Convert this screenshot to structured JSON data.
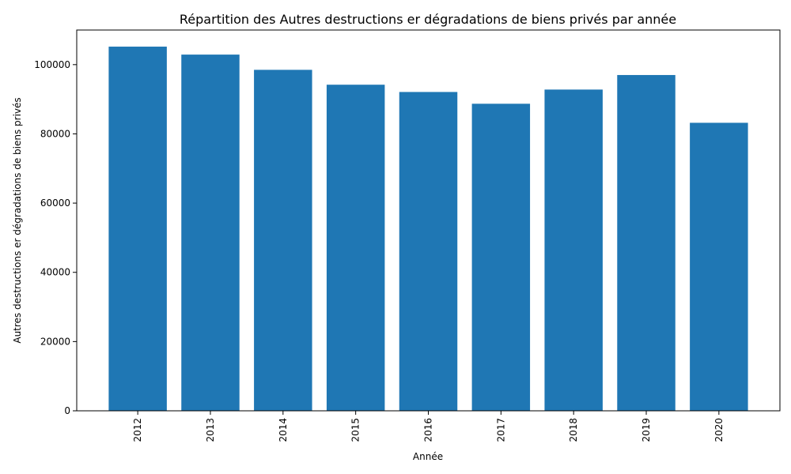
{
  "chart_data": {
    "type": "bar",
    "title": "Répartition des Autres destructions er dégradations de biens privés par année",
    "xlabel": "Année",
    "ylabel": "Autres destructions er dégradations de biens privés",
    "categories": [
      "2012",
      "2013",
      "2014",
      "2015",
      "2016",
      "2017",
      "2018",
      "2019",
      "2020"
    ],
    "values": [
      105200,
      102900,
      98500,
      94200,
      92100,
      88700,
      92800,
      97000,
      83200
    ],
    "ylim": [
      0,
      110000
    ],
    "yticks": [
      0,
      20000,
      40000,
      60000,
      80000,
      100000
    ],
    "ytick_labels": [
      "0",
      "20000",
      "40000",
      "60000",
      "80000",
      "100000"
    ],
    "bar_color": "#1f77b4",
    "grid": false
  }
}
